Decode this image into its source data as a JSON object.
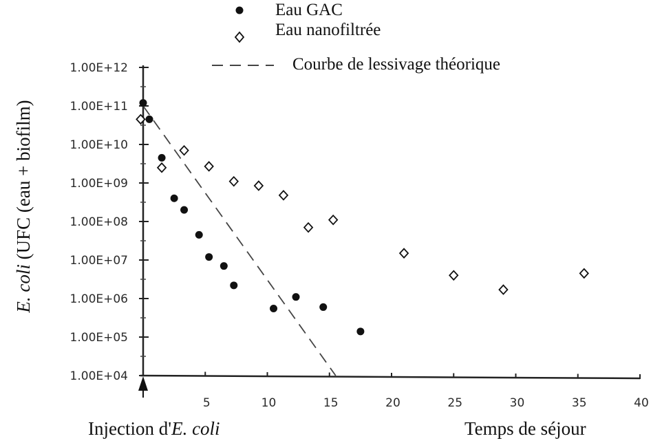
{
  "chart_data": {
    "type": "scatter",
    "x_range": [
      0,
      40
    ],
    "y_scale": "log",
    "y_range_exponent": [
      4,
      12
    ],
    "x_ticks": [
      "5",
      "10",
      "15",
      "20",
      "25",
      "30",
      "35",
      "40"
    ],
    "y_ticks": [
      "1.00E+04",
      "1.00E+05",
      "1.00E+06",
      "1.00E+07",
      "1.00E+08",
      "1.00E+09",
      "1.00E+10",
      "1.00E+11",
      "1.00E+12"
    ],
    "ylabel": {
      "italic": "E. coli",
      "rest": " (UFC (eau + biofilm)"
    },
    "xlabel_left": {
      "plain": "Injection d'",
      "italic": "E. coli"
    },
    "xlabel_right": "Temps de séjour",
    "legend": [
      {
        "label": "Eau GAC",
        "marker": "filled-circle"
      },
      {
        "label": "Eau nanofiltrée",
        "marker": "open-diamond"
      },
      {
        "label": "Courbe de lessivage théorique",
        "marker": "dashed-line"
      }
    ],
    "series": [
      {
        "name": "Eau GAC",
        "x": [
          0,
          0.5,
          1.5,
          2.5,
          3.3,
          4.5,
          5.3,
          6.5,
          7.3,
          10.5,
          12.3,
          14.5,
          17.5
        ],
        "y": [
          120000000000.0,
          45000000000.0,
          4500000000.0,
          400000000.0,
          200000000.0,
          45000000.0,
          12000000.0,
          7000000.0,
          2200000.0,
          550000.0,
          1100000.0,
          600000.0,
          140000.0
        ]
      },
      {
        "name": "Eau nanofiltrée",
        "x": [
          -0.2,
          1.5,
          3.3,
          5.3,
          7.3,
          9.3,
          11.3,
          13.3,
          15.3,
          21,
          25,
          29,
          35.5
        ],
        "y": [
          45000000000.0,
          2500000000.0,
          7000000000.0,
          2700000000.0,
          1100000000.0,
          850000000.0,
          480000000.0,
          70000000.0,
          110000000.0,
          15000000.0,
          4000000.0,
          1700000.0,
          4500000.0
        ]
      },
      {
        "name": "Courbe de lessivage théorique",
        "x": [
          0,
          15.5
        ],
        "y": [
          100000000000.0,
          10000.0
        ]
      }
    ]
  }
}
